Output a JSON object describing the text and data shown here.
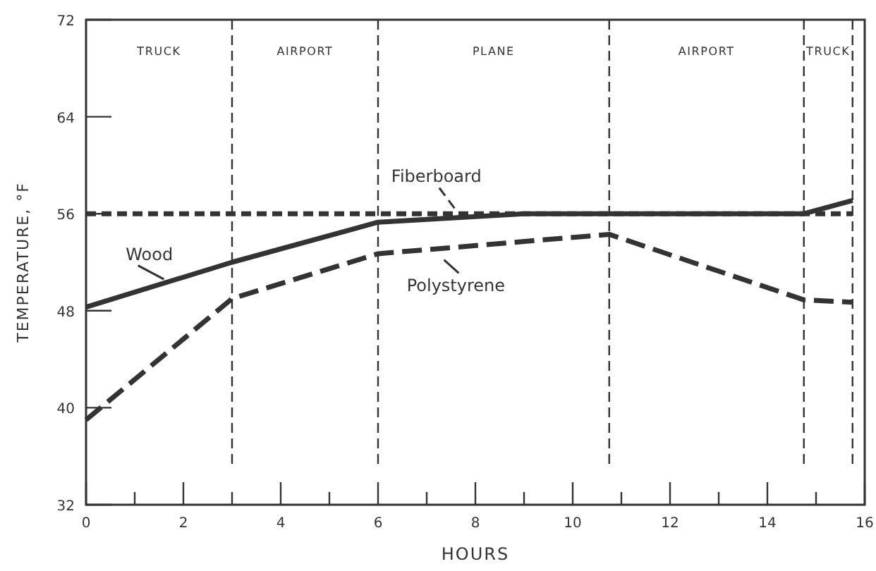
{
  "chart_data": {
    "type": "line",
    "xlabel": "HOURS",
    "ylabel": "TEMPERATURE, °F",
    "xlim": [
      0,
      16
    ],
    "ylim": [
      32,
      72
    ],
    "xticks": [
      0,
      {
        "value": 1,
        "label": null
      },
      2,
      {
        "value": 3,
        "label": null
      },
      4,
      {
        "value": 5,
        "label": null
      },
      6,
      {
        "value": 7,
        "label": null
      },
      8,
      {
        "value": 9,
        "label": null
      },
      10,
      {
        "value": 11,
        "label": null
      },
      12,
      {
        "value": 13,
        "label": null
      },
      14,
      {
        "value": 15,
        "label": null
      },
      16
    ],
    "yticks": [
      32,
      40,
      48,
      56,
      64,
      72
    ],
    "grid": false,
    "ref_lines": [
      {
        "axis": "x",
        "value": 3,
        "line_style": "dashed"
      },
      {
        "axis": "x",
        "value": 6,
        "line_style": "dashed"
      },
      {
        "axis": "x",
        "value": 10.75,
        "line_style": "dashed"
      },
      {
        "axis": "x",
        "value": 14.75,
        "line_style": "dashed"
      },
      {
        "axis": "x",
        "value": 15.75,
        "line_style": "dashed"
      }
    ],
    "annotations": [
      "TRUCK",
      "AIRPORT",
      "PLANE",
      "AIRPORT",
      "TRUCK"
    ],
    "series": [
      {
        "name": "Fiberboard",
        "color": "#333333",
        "line_style": "dotted",
        "x": [
          0,
          15.75
        ],
        "values": [
          56,
          56
        ]
      },
      {
        "name": "Wood",
        "color": "#333333",
        "line_style": "solid",
        "x": [
          0,
          3,
          6,
          9,
          14.75,
          15.75
        ],
        "values": [
          48.3,
          52,
          55.3,
          56,
          56,
          57.1
        ]
      },
      {
        "name": "Polystyrene",
        "color": "#333333",
        "line_style": "dashed",
        "x": [
          0,
          3,
          6,
          10.75,
          14.75,
          15.75
        ],
        "values": [
          39,
          49,
          52.7,
          54.3,
          48.9,
          48.7
        ]
      }
    ]
  }
}
